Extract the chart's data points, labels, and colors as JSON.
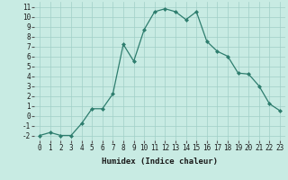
{
  "x": [
    0,
    1,
    2,
    3,
    4,
    5,
    6,
    7,
    8,
    9,
    10,
    11,
    12,
    13,
    14,
    15,
    16,
    17,
    18,
    19,
    20,
    21,
    22,
    23
  ],
  "y": [
    -2,
    -1.7,
    -2,
    -2,
    -0.8,
    0.7,
    0.7,
    2.2,
    7.2,
    5.5,
    8.7,
    10.5,
    10.8,
    10.5,
    9.7,
    10.5,
    7.5,
    6.5,
    6.0,
    4.3,
    4.2,
    3.0,
    1.2,
    0.5
  ],
  "xlabel": "Humidex (Indice chaleur)",
  "line_color": "#2e7d6e",
  "marker": "D",
  "marker_size": 2,
  "bg_color": "#c8ebe3",
  "grid_color": "#a0cfc7",
  "xlim": [
    -0.5,
    23.5
  ],
  "ylim": [
    -2.5,
    11.5
  ],
  "yticks": [
    -2,
    -1,
    0,
    1,
    2,
    3,
    4,
    5,
    6,
    7,
    8,
    9,
    10,
    11
  ],
  "xticks": [
    0,
    1,
    2,
    3,
    4,
    5,
    6,
    7,
    8,
    9,
    10,
    11,
    12,
    13,
    14,
    15,
    16,
    17,
    18,
    19,
    20,
    21,
    22,
    23
  ],
  "tick_fontsize": 5.5,
  "xlabel_fontsize": 6.5,
  "linewidth": 0.9
}
